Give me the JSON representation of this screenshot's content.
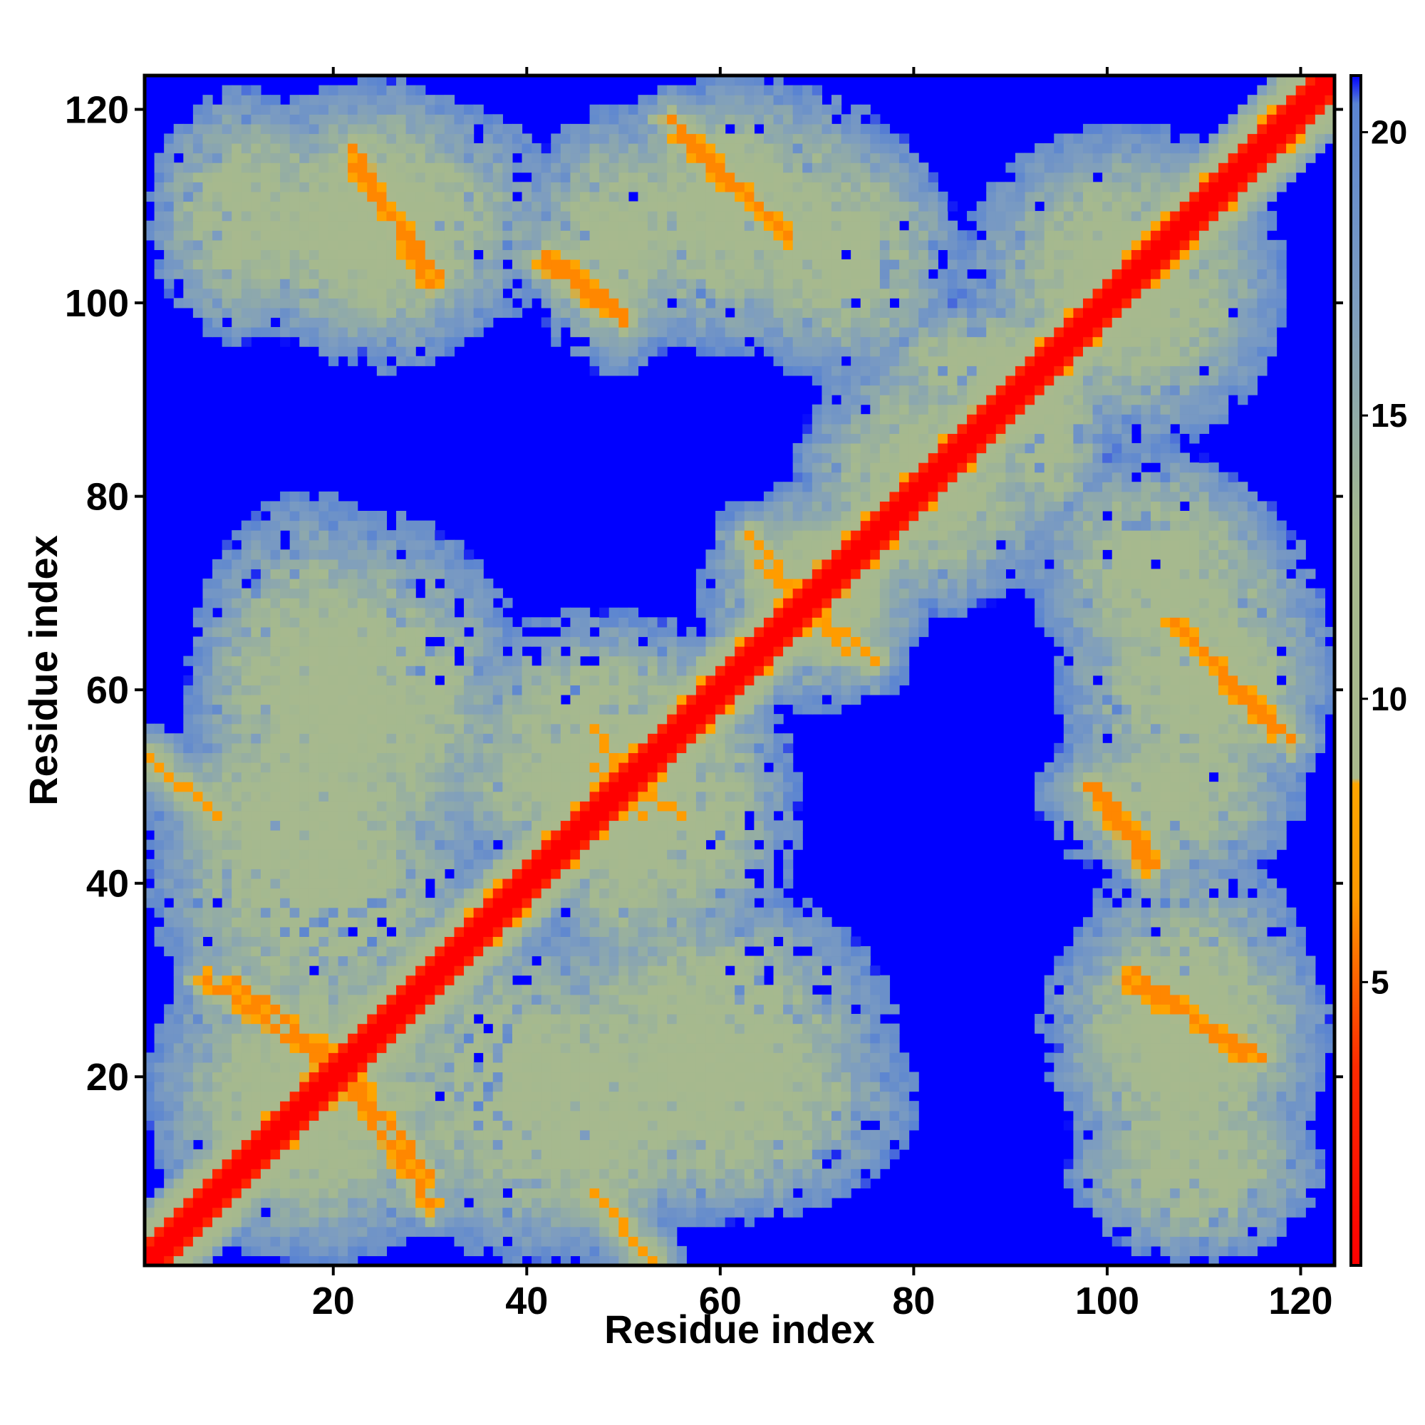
{
  "chart_data": {
    "type": "heatmap",
    "title": "",
    "subtitle": "",
    "xlabel": "Residue index",
    "ylabel": "Residue index",
    "xlim": [
      1,
      123
    ],
    "ylim": [
      1,
      123
    ],
    "n_residues": 123,
    "x_ticks": [
      20,
      40,
      60,
      80,
      100,
      120
    ],
    "y_ticks": [
      20,
      40,
      60,
      80,
      100,
      120
    ],
    "x_tick_labels": [
      "20",
      "40",
      "60",
      "80",
      "100",
      "120"
    ],
    "y_tick_labels": [
      "20",
      "40",
      "60",
      "80",
      "100",
      "120"
    ],
    "colorbar": {
      "ticks": [
        5,
        10,
        15,
        20
      ],
      "tick_labels": [
        "5",
        "10",
        "15",
        "20"
      ],
      "range": [
        0,
        21
      ],
      "stops": [
        {
          "value": 0,
          "color": "#ff0000"
        },
        {
          "value": 3.5,
          "color": "#ff2a00"
        },
        {
          "value": 6.5,
          "color": "#ff9900"
        },
        {
          "value": 8.5,
          "color": "#ffa500"
        },
        {
          "value": 8.6,
          "color": "#a9b98d"
        },
        {
          "value": 13,
          "color": "#a5b98f"
        },
        {
          "value": 17,
          "color": "#7d9dc0"
        },
        {
          "value": 20.5,
          "color": "#5a84d2"
        },
        {
          "value": 21,
          "color": "#0000ff"
        }
      ],
      "far_color": "#0000ff"
    },
    "grid": false,
    "legend": "colorbar-right",
    "diagonal": {
      "value": 0
    },
    "contact_segments": [
      {
        "a1": 10,
        "b1": 30,
        "a2": 22,
        "b2": 20,
        "value": 6
      },
      {
        "a1": 21,
        "b1": 20,
        "a2": 30,
        "b2": 7,
        "value": 6
      },
      {
        "a1": 22,
        "b1": 116,
        "a2": 30,
        "b2": 102,
        "value": 6
      },
      {
        "a1": 42,
        "b1": 104,
        "a2": 50,
        "b2": 98,
        "value": 6
      },
      {
        "a1": 55,
        "b1": 119,
        "a2": 67,
        "b2": 107,
        "value": 6
      },
      {
        "a1": 107,
        "b1": 67,
        "a2": 117,
        "b2": 56,
        "value": 6
      },
      {
        "a1": 99,
        "b1": 50,
        "a2": 105,
        "b2": 42,
        "value": 6
      },
      {
        "a1": 103,
        "b1": 31,
        "a2": 114,
        "b2": 22,
        "value": 6
      },
      {
        "a1": 1,
        "b1": 53,
        "a2": 8,
        "b2": 47,
        "value": 7
      },
      {
        "a1": 64,
        "b1": 73,
        "a2": 76,
        "b2": 63,
        "value": 7
      },
      {
        "a1": 47,
        "b1": 52,
        "a2": 56,
        "b2": 47,
        "value": 7
      }
    ],
    "neighbor_clusters": [
      {
        "x": [
          1,
          33
        ],
        "y": [
          1,
          36
        ]
      },
      {
        "x": [
          1,
          36
        ],
        "y": [
          22,
          60
        ]
      },
      {
        "x": [
          8,
          40
        ],
        "y": [
          40,
          78
        ]
      },
      {
        "x": [
          2,
          45
        ],
        "y": [
          95,
          122
        ]
      },
      {
        "x": [
          30,
          60
        ],
        "y": [
          40,
          60
        ]
      },
      {
        "x": [
          35,
          60
        ],
        "y": [
          1,
          32
        ]
      },
      {
        "x": [
          40,
          80
        ],
        "y": [
          5,
          30
        ]
      },
      {
        "x": [
          42,
          68
        ],
        "y": [
          30,
          65
        ]
      },
      {
        "x": [
          42,
          82
        ],
        "y": [
          95,
          123
        ]
      },
      {
        "x": [
          58,
          82
        ],
        "y": [
          60,
          80
        ]
      },
      {
        "x": [
          68,
          93
        ],
        "y": [
          70,
          95
        ]
      },
      {
        "x": [
          75,
          100
        ],
        "y": [
          88,
          100
        ]
      },
      {
        "x": [
          88,
          118
        ],
        "y": [
          85,
          118
        ]
      },
      {
        "x": [
          92,
          118
        ],
        "y": [
          60,
          85
        ]
      },
      {
        "x": [
          93,
          120
        ],
        "y": [
          40,
          58
        ]
      },
      {
        "x": [
          93,
          123
        ],
        "y": [
          12,
          38
        ]
      },
      {
        "x": [
          96,
          122
        ],
        "y": [
          1,
          20
        ]
      },
      {
        "x": [
          100,
          123
        ],
        "y": [
          52,
          70
        ]
      }
    ]
  }
}
